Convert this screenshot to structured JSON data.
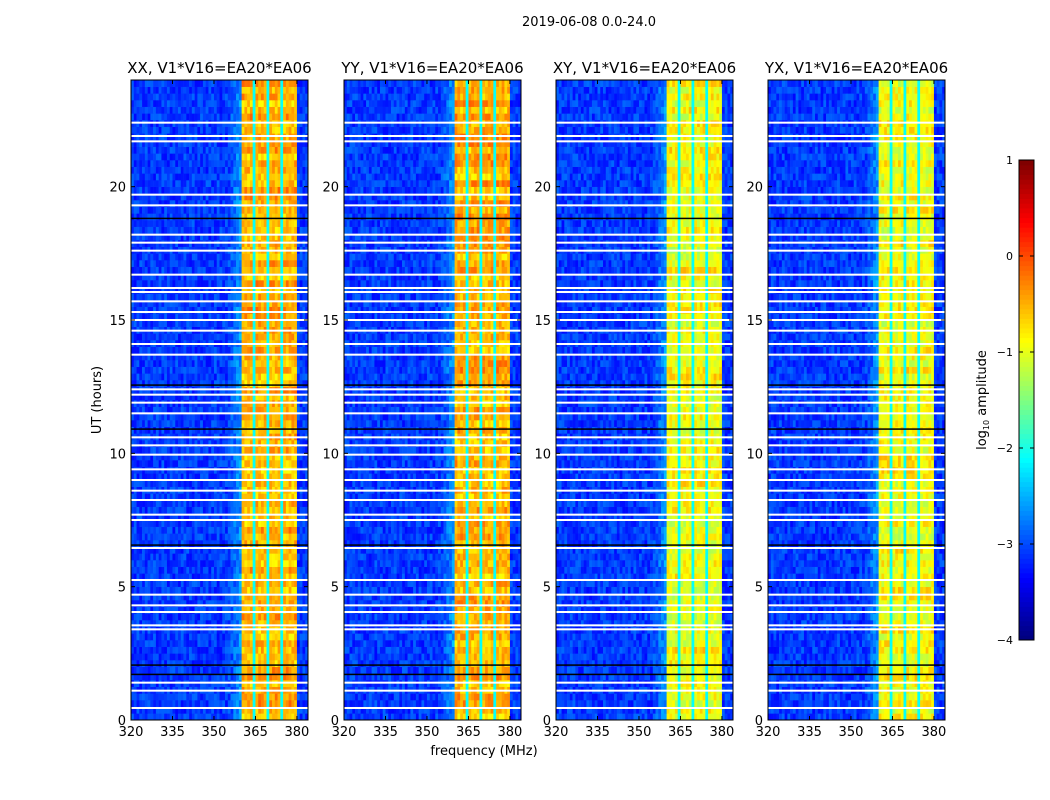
{
  "chart_data": {
    "type": "heatmap",
    "suptitle": "2019-06-08 0.0-24.0",
    "xlabel": "frequency (MHz)",
    "ylabel": "UT (hours)",
    "xlim": [
      320,
      384
    ],
    "ylim": [
      0,
      24
    ],
    "xticks": [
      "320",
      "335",
      "350",
      "365",
      "380"
    ],
    "xtick_values": [
      320,
      335,
      350,
      365,
      380
    ],
    "yticks": [
      "0",
      "5",
      "10",
      "15",
      "20"
    ],
    "ytick_values": [
      0,
      5,
      10,
      15,
      20
    ],
    "panels": [
      {
        "title": "XX, V1*V16=EA20*EA06",
        "band_level": -0.5,
        "background_level": -3.1
      },
      {
        "title": "YY, V1*V16=EA20*EA06",
        "band_level": -0.5,
        "background_level": -3.1
      },
      {
        "title": "XY, V1*V16=EA20*EA06",
        "band_level": -0.9,
        "background_level": -3.1
      },
      {
        "title": "YX, V1*V16=EA20*EA06",
        "band_level": -0.9,
        "background_level": -3.1
      }
    ],
    "band_mhz": [
      360.5,
      380
    ],
    "band_gaps_mhz": [
      364.8,
      369.8,
      374.8
    ],
    "flagged_hours_white": [
      0.45,
      1.1,
      1.4,
      3.4,
      3.55,
      4.05,
      4.3,
      4.7,
      5.25,
      6.45,
      7.5,
      7.7,
      8.25,
      8.6,
      9.0,
      9.4,
      9.95,
      10.3,
      10.6,
      11.5,
      11.9,
      12.2,
      12.4,
      13.7,
      14.1,
      14.6,
      15.0,
      15.3,
      15.7,
      16.05,
      16.2,
      16.7,
      17.6,
      17.9,
      18.2,
      19.3,
      19.7,
      21.7,
      21.9,
      22.4
    ],
    "flagged_hours_black": [
      1.7,
      2.05,
      6.55,
      10.9,
      12.55,
      18.8
    ],
    "colorbar": {
      "label_prefix": "log",
      "label_sub": "10",
      "label_suffix": " amplitude",
      "range": [
        -4,
        1
      ],
      "ticks": [
        "−4",
        "−3",
        "−2",
        "−1",
        "0",
        "1"
      ],
      "tick_values": [
        -4,
        -3,
        -2,
        -1,
        0,
        1
      ],
      "colormap": "jet"
    }
  }
}
